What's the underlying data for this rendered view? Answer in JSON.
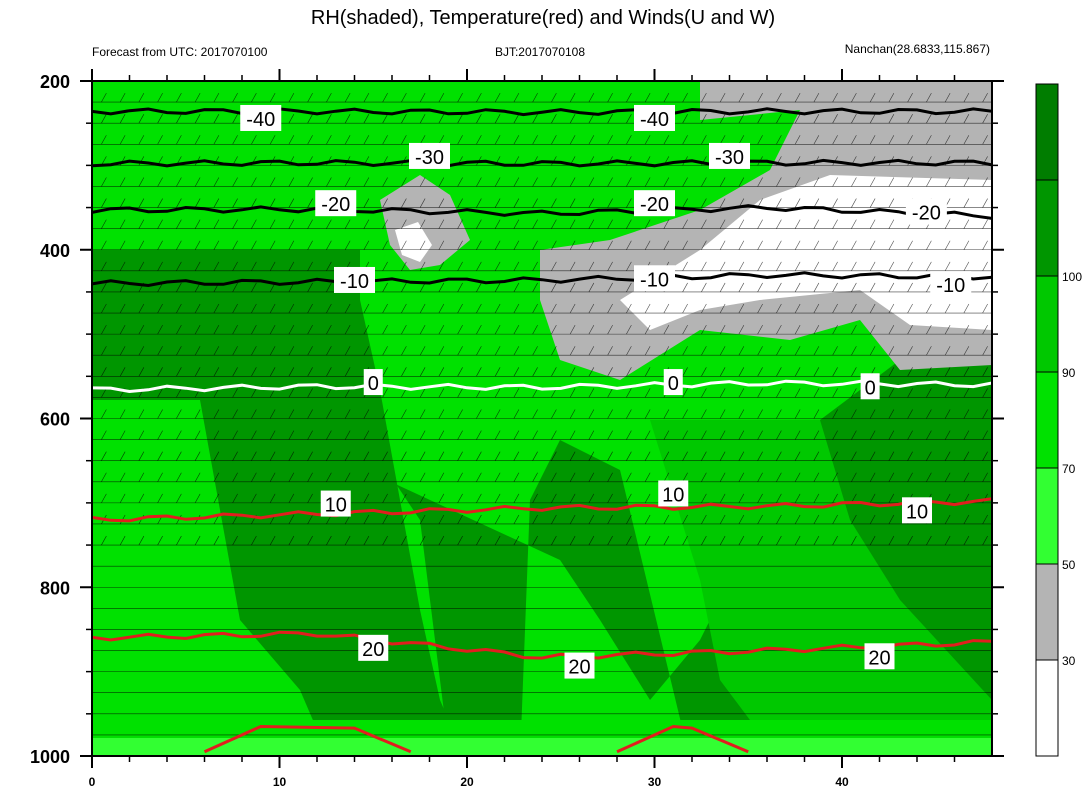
{
  "chart_data": {
    "type": "contour",
    "title": "RH(shaded), Temperature(red) and Winds(U and W)",
    "subtitle_left": "Forecast from UTC: 2017070100",
    "subtitle_center": "BJT:2017070108",
    "subtitle_right": "Nanchan(28.6833,115.867)",
    "x_ticks": [
      "0",
      "10",
      "20",
      "30",
      "40"
    ],
    "x_range": [
      0,
      48
    ],
    "y_ticks": [
      "200",
      "400",
      "600",
      "800",
      "1000"
    ],
    "y_range": [
      200,
      1000
    ],
    "colorbar": {
      "ticks": [
        "30",
        "50",
        "70",
        "90",
        "100"
      ],
      "colors": [
        "#ffffff",
        "#b4b4b4",
        "#32ff32",
        "#00e100",
        "#00c800",
        "#009600",
        "#007d00"
      ]
    },
    "rh_color_fills": {
      "white": "#ffffff",
      "gray": "#b4b4b4",
      "light_green": "#32ff32",
      "green": "#00e100",
      "medium_green": "#00c800",
      "dark_green": "#009600",
      "darkest_green": "#007d00",
      "temperature_line": "#e11e1e",
      "zero_line": "#ffffff",
      "cold_line": "#000000"
    },
    "temperature_contours": [
      {
        "level": "-40",
        "y": [
          236,
          236,
          237,
          236,
          236
        ]
      },
      {
        "level": "-30",
        "y": [
          298,
          297,
          298,
          297,
          297
        ]
      },
      {
        "level": "-20",
        "y": [
          353,
          352,
          357,
          350,
          360
        ]
      },
      {
        "level": "-10",
        "y": [
          440,
          438,
          436,
          430,
          432
        ]
      },
      {
        "level": "0",
        "y": [
          566,
          562,
          563,
          558,
          560
        ]
      },
      {
        "level": "10",
        "y": [
          720,
          713,
          706,
          704,
          698
        ]
      },
      {
        "level": "20",
        "y": [
          860,
          855,
          883,
          875,
          865
        ]
      }
    ],
    "temperature_labels": [
      {
        "text": "-40",
        "x": 9.0,
        "y": 245
      },
      {
        "text": "-40",
        "x": 30.0,
        "y": 245
      },
      {
        "text": "-30",
        "x": 18.0,
        "y": 290
      },
      {
        "text": "-30",
        "x": 34.0,
        "y": 290
      },
      {
        "text": "-20",
        "x": 13.0,
        "y": 346
      },
      {
        "text": "-20",
        "x": 30.0,
        "y": 346
      },
      {
        "text": "-20",
        "x": 44.5,
        "y": 356
      },
      {
        "text": "-10",
        "x": 14.0,
        "y": 437
      },
      {
        "text": "-10",
        "x": 30.0,
        "y": 435
      },
      {
        "text": "-10",
        "x": 45.8,
        "y": 442
      },
      {
        "text": "0",
        "x": 15.0,
        "y": 558
      },
      {
        "text": "0",
        "x": 31.0,
        "y": 558
      },
      {
        "text": "0",
        "x": 41.5,
        "y": 563
      },
      {
        "text": "10",
        "x": 13.0,
        "y": 702
      },
      {
        "text": "10",
        "x": 31.0,
        "y": 690
      },
      {
        "text": "10",
        "x": 44.0,
        "y": 710
      },
      {
        "text": "20",
        "x": 15.0,
        "y": 873
      },
      {
        "text": "20",
        "x": 26.0,
        "y": 894
      },
      {
        "text": "20",
        "x": 42.0,
        "y": 883
      }
    ]
  }
}
